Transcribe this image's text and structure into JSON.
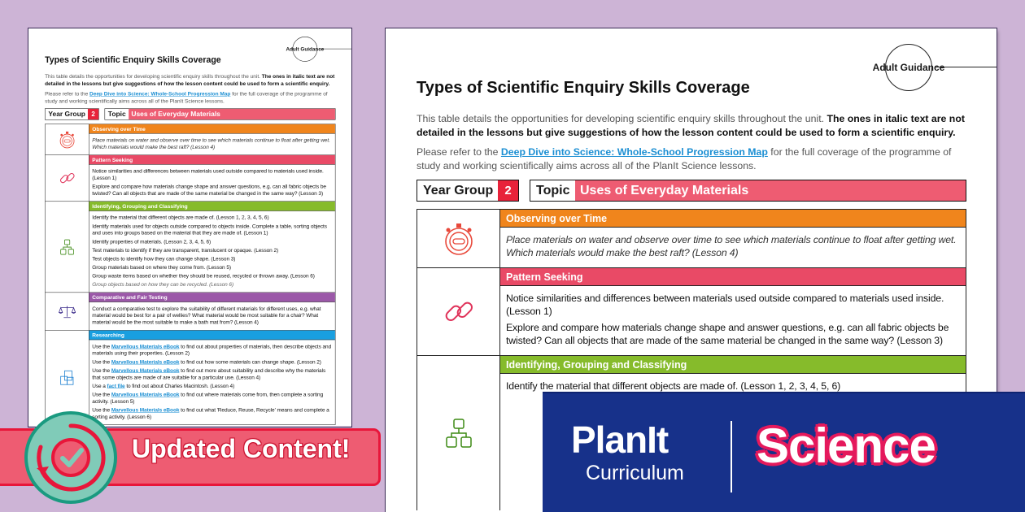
{
  "document": {
    "badge": "Adult Guidance",
    "title": "Types of Scientific Enquiry Skills Coverage",
    "intro": {
      "plain": "This table details the opportunities for developing scientific enquiry skills throughout the unit. ",
      "bold": "The ones in italic text are not detailed in the lessons but give suggestions of how the lesson content could be used to form a scientific enquiry."
    },
    "refer": {
      "before": "Please refer to the ",
      "link": "Deep Dive into Science: Whole-School Progression Map",
      "after": " for the full coverage of the programme of study and working scientifically aims across all of the PlanIt Science lessons."
    },
    "year_group_label": "Year Group",
    "year_group_value": "2",
    "topic_label": "Topic",
    "topic_value": "Uses of Everyday Materials",
    "rows": [
      {
        "heading": "Observing over Time",
        "color": "#f0851c",
        "icon": "stopwatch-icon",
        "items": [
          [
            {
              "t": "Place materials on water and observe over time to see which materials continue to float after getting wet. Which materials would make the best raft? (Lesson 4)"
            }
          ]
        ],
        "italic": [
          0
        ]
      },
      {
        "heading": "Pattern Seeking",
        "color": "#e94a66",
        "icon": "chain-link-icon",
        "items": [
          [
            {
              "t": "Notice similarities and differences between materials used outside compared to materials used inside. (Lesson 1)"
            }
          ],
          [
            {
              "t": "Explore and compare how materials change shape and answer questions, e.g. can all fabric objects be twisted? Can all objects that are made of the same material be changed in the same way? (Lesson 3)"
            }
          ]
        ],
        "italic": []
      },
      {
        "heading": "Identifying, Grouping and Classifying",
        "color": "#86bb2b",
        "icon": "hierarchy-icon",
        "items": [
          [
            {
              "t": "Identify the material that different objects are made of. (Lesson 1, 2, 3, 4, 5, 6)"
            }
          ],
          [
            {
              "t": "Identify materials used for objects outside compared to objects inside. Complete a table, sorting objects and uses into groups based on the material that they are made of. (Lesson 1)"
            }
          ],
          [
            {
              "t": "Identify properties of materials. (Lesson 2, 3, 4, 5, 6)"
            }
          ],
          [
            {
              "t": "Test materials to identify if they are transparent, translucent or opaque. (Lesson 2)"
            }
          ],
          [
            {
              "t": "Test objects to identify how they can change shape. (Lesson 3)"
            }
          ],
          [
            {
              "t": "Group materials based on where they come from. (Lesson 5)"
            }
          ],
          [
            {
              "t": "Group waste items based on whether they should be reused, recycled or thrown away. (Lesson 6)"
            }
          ],
          [
            {
              "t": "Group objects based on how they can be recycled. (Lesson 6)"
            }
          ]
        ],
        "italic": [
          7
        ]
      },
      {
        "heading": "Comparative and Fair Testing",
        "color": "#9b58a8",
        "icon": "balance-scales-icon",
        "items": [
          [
            {
              "t": "Conduct a comparative test to explore the suitability of different materials for different uses, e.g. what material would be best for a pair of wellies? What material would be most suitable for a chair? What material would be the most suitable to make a bath mat from? (Lesson 4)"
            }
          ]
        ],
        "italic": []
      },
      {
        "heading": "Researching",
        "color": "#199fe0",
        "icon": "books-icon",
        "items": [
          [
            {
              "t": "Use the "
            },
            {
              "t": "Marvellous Materials eBook",
              "link": true
            },
            {
              "t": " to find out about properties of materials, then describe objects and materials using their properties. (Lesson 2)"
            }
          ],
          [
            {
              "t": "Use the "
            },
            {
              "t": "Marvellous Materials eBook",
              "link": true
            },
            {
              "t": " to find out how some materials can change shape. (Lesson 2)"
            }
          ],
          [
            {
              "t": "Use the "
            },
            {
              "t": "Marvellous Materials eBook",
              "link": true
            },
            {
              "t": " to find out more about suitability and describe why the materials that some objects are made of are suitable for a particular use. (Lesson 4)"
            }
          ],
          [
            {
              "t": "Use a "
            },
            {
              "t": "fact file",
              "link": true
            },
            {
              "t": " to find out about Charles Macintosh. (Lesson 4)"
            }
          ],
          [
            {
              "t": "Use the "
            },
            {
              "t": "Marvellous Materials eBook",
              "link": true
            },
            {
              "t": " to find out where materials come from, then complete a sorting activity. (Lesson 5)"
            }
          ],
          [
            {
              "t": "Use the "
            },
            {
              "t": "Marvellous Materials eBook",
              "link": true
            },
            {
              "t": " to find out what 'Reduce, Reuse, Recycle' means and complete a sorting activity. (Lesson 6)"
            }
          ]
        ],
        "italic": []
      }
    ]
  },
  "updated_banner": {
    "label": "Updated Content!",
    "icon": "refresh-check-icon"
  },
  "brand": {
    "planit": "PlanIt",
    "curriculum": "Curriculum",
    "science": "Science"
  },
  "colors": {
    "background": "#cdb4d6",
    "brand_navy": "#17318a",
    "banner_pink": "#ee5c72",
    "accent_red": "#e8223a"
  }
}
